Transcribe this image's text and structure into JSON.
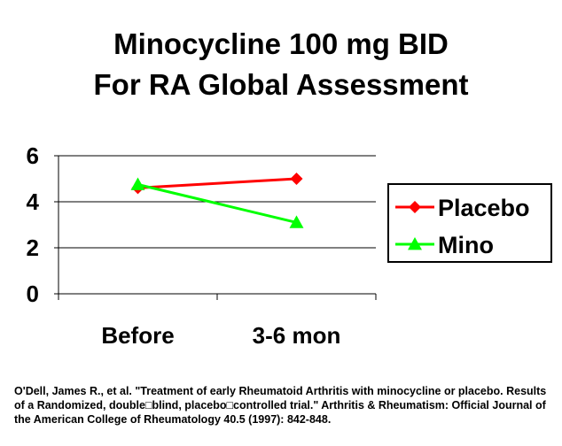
{
  "chart_data": {
    "type": "line",
    "title_lines": [
      "Minocycline 100 mg BID",
      "For RA Global Assessment"
    ],
    "categories": [
      "Before",
      "3-6 mon"
    ],
    "y_ticks": [
      "0",
      "2",
      "4",
      "6"
    ],
    "ylim": [
      0,
      6
    ],
    "grid": true,
    "legend_position": "right",
    "series": [
      {
        "name": "Placebo",
        "values": [
          4.6,
          5.0
        ],
        "color": "#ff0000",
        "marker": "diamond"
      },
      {
        "name": "Mino",
        "values": [
          4.75,
          3.1
        ],
        "color": "#00ff00",
        "marker": "triangle"
      }
    ]
  },
  "citation": "O'Dell, James R., et al. \"Treatment of early Rheumatoid Arthritis with minocycline or placebo. Results of a Randomized, double□blind, placebo□controlled trial.\" Arthritis & Rheumatism: Official Journal of the American College of Rheumatology 40.5 (1997): 842-848."
}
